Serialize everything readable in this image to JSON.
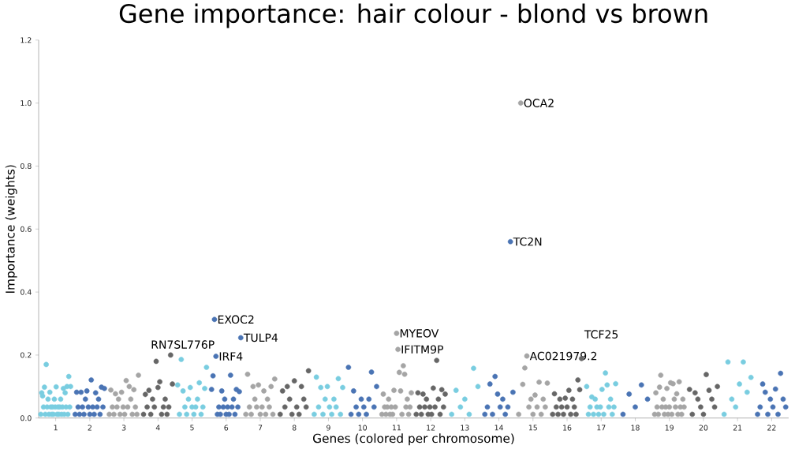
{
  "chart_data": {
    "type": "scatter",
    "title": "Gene importance: hair colour - blond vs brown",
    "xlabel": "Genes (colored per chromosome)",
    "ylabel": "Importance (weights)",
    "categories": [
      "1",
      "2",
      "3",
      "4",
      "5",
      "6",
      "7",
      "8",
      "9",
      "10",
      "11",
      "12",
      "13",
      "14",
      "15",
      "16",
      "17",
      "18",
      "19",
      "20",
      "21",
      "22"
    ],
    "ylim": [
      0,
      1.2
    ],
    "marker": "circle",
    "yticks": [
      {
        "value": 0,
        "label": "0.0"
      },
      {
        "value": 0.2,
        "label": "0.2"
      },
      {
        "value": 0.4,
        "label": "0.4"
      },
      {
        "value": 0.6,
        "label": "0.6"
      },
      {
        "value": 0.8,
        "label": "0.8"
      },
      {
        "value": 1.0,
        "label": "1.0"
      },
      {
        "value": 1.2,
        "label": "1.2"
      }
    ],
    "series": [
      {
        "color": "#79cde0",
        "x": [
          "1",
          "1",
          "1",
          "1",
          "1",
          "1",
          "1",
          "1",
          "1",
          "1",
          "1",
          "1",
          "1",
          "1",
          "1",
          "1",
          "1",
          "1",
          "1",
          "1",
          "1",
          "1",
          "1",
          "1",
          "1",
          "1",
          "1",
          "1",
          "1",
          "1",
          "1",
          "1",
          "1",
          "1",
          "5",
          "5",
          "5",
          "5",
          "5",
          "5",
          "5",
          "5",
          "5",
          "5",
          "5",
          "5",
          "5",
          "5",
          "5",
          "5",
          "5",
          "9",
          "9",
          "9",
          "9",
          "9",
          "9",
          "9",
          "9",
          "9",
          "9",
          "9",
          "9",
          "9",
          "9",
          "13",
          "13",
          "13",
          "13",
          "13",
          "13",
          "13",
          "17",
          "17",
          "17",
          "17",
          "17",
          "17",
          "17",
          "17",
          "17",
          "17",
          "17",
          "17",
          "17",
          "17",
          "17",
          "17",
          "17",
          "17",
          "21",
          "21",
          "21",
          "21",
          "21",
          "21",
          "21",
          "21"
        ],
        "values": [
          0.012,
          0.08,
          0.07,
          0.035,
          0.098,
          0.012,
          0.17,
          0.035,
          0.06,
          0.012,
          0.082,
          0.035,
          0.012,
          0.035,
          0.012,
          0.06,
          0.035,
          0.099,
          0.012,
          0.035,
          0.012,
          0.035,
          0.06,
          0.012,
          0.035,
          0.094,
          0.012,
          0.08,
          0.035,
          0.1,
          0.012,
          0.132,
          0.035,
          0.1,
          0.105,
          0.012,
          0.186,
          0.086,
          0.035,
          0.012,
          0.06,
          0.097,
          0.035,
          0.012,
          0.035,
          0.06,
          0.112,
          0.012,
          0.035,
          0.094,
          0.161,
          0.012,
          0.13,
          0.035,
          0.097,
          0.012,
          0.06,
          0.1,
          0.035,
          0.012,
          0.06,
          0.035,
          0.125,
          0.012,
          0.097,
          0.012,
          0.088,
          0.035,
          0.06,
          0.012,
          0.158,
          0.1,
          0.1,
          0.012,
          0.035,
          0.067,
          0.012,
          0.06,
          0.035,
          0.012,
          0.035,
          0.091,
          0.012,
          0.143,
          0.105,
          0.035,
          0.06,
          0.012,
          0.035,
          0.109,
          0.012,
          0.178,
          0.06,
          0.035,
          0.108,
          0.178,
          0.082,
          0.129
        ]
      },
      {
        "color": "#4a74b4",
        "x": [
          "2",
          "2",
          "2",
          "2",
          "2",
          "2",
          "2",
          "2",
          "2",
          "2",
          "2",
          "2",
          "2",
          "2",
          "2",
          "2",
          "2",
          "2",
          "2",
          "2",
          "2",
          "6",
          "6",
          "6",
          "6",
          "6",
          "6",
          "6",
          "6",
          "6",
          "6",
          "6",
          "6",
          "6",
          "6",
          "6",
          "6",
          "6",
          "6",
          "6",
          "6",
          "6",
          "10",
          "10",
          "10",
          "10",
          "10",
          "10",
          "10",
          "10",
          "10",
          "10",
          "10",
          "10",
          "14",
          "14",
          "14",
          "14",
          "14",
          "14",
          "14",
          "14",
          "14",
          "14",
          "14",
          "14",
          "18",
          "18",
          "18",
          "18",
          "18",
          "22",
          "22",
          "22",
          "22",
          "22",
          "22",
          "22",
          "22",
          "22",
          "22",
          "22",
          "22"
        ],
        "values": [
          0.012,
          0.082,
          0.035,
          0.012,
          0.082,
          0.035,
          0.012,
          0.06,
          0.086,
          0.035,
          0.012,
          0.121,
          0.035,
          0.012,
          0.08,
          0.035,
          0.06,
          0.012,
          0.098,
          0.035,
          0.094,
          0.091,
          0.134,
          0.313,
          0.196,
          0.012,
          0.035,
          0.012,
          0.086,
          0.035,
          0.06,
          0.012,
          0.035,
          0.012,
          0.136,
          0.035,
          0.06,
          0.012,
          0.091,
          0.035,
          0.084,
          0.255,
          0.161,
          0.012,
          0.086,
          0.035,
          0.012,
          0.06,
          0.035,
          0.012,
          0.06,
          0.146,
          0.035,
          0.1,
          0.012,
          0.035,
          0.108,
          0.012,
          0.132,
          0.076,
          0.035,
          0.06,
          0.012,
          0.035,
          0.56,
          0.082,
          0.012,
          0.076,
          0.035,
          0.105,
          0.06,
          0.012,
          0.035,
          0.108,
          0.082,
          0.012,
          0.06,
          0.035,
          0.092,
          0.012,
          0.142,
          0.06,
          0.035
        ]
      },
      {
        "color": "#a5a5a5",
        "x": [
          "3",
          "3",
          "3",
          "3",
          "3",
          "3",
          "3",
          "3",
          "3",
          "3",
          "3",
          "3",
          "3",
          "3",
          "3",
          "3",
          "3",
          "3",
          "3",
          "3",
          "7",
          "7",
          "7",
          "7",
          "7",
          "7",
          "7",
          "7",
          "7",
          "7",
          "7",
          "7",
          "7",
          "7",
          "7",
          "7",
          "7",
          "11",
          "11",
          "11",
          "11",
          "11",
          "11",
          "11",
          "11",
          "11",
          "11",
          "11",
          "11",
          "11",
          "11",
          "11",
          "11",
          "11",
          "11",
          "11",
          "11",
          "11",
          "11",
          "11",
          "15",
          "15",
          "15",
          "15",
          "15",
          "15",
          "15",
          "15",
          "15",
          "15",
          "15",
          "15",
          "15",
          "15",
          "15",
          "19",
          "19",
          "19",
          "19",
          "19",
          "19",
          "19",
          "19",
          "19",
          "19",
          "19",
          "19",
          "19",
          "19",
          "19",
          "19",
          "19",
          "19",
          "19",
          "19",
          "19",
          "19",
          "19",
          "19",
          "19"
        ],
        "values": [
          0.012,
          0.089,
          0.035,
          0.012,
          0.077,
          0.035,
          0.06,
          0.012,
          0.082,
          0.035,
          0.012,
          0.119,
          0.035,
          0.1,
          0.06,
          0.012,
          0.09,
          0.035,
          0.012,
          0.136,
          0.012,
          0.139,
          0.035,
          0.012,
          0.1,
          0.06,
          0.035,
          0.105,
          0.012,
          0.035,
          0.086,
          0.012,
          0.06,
          0.035,
          0.1,
          0.012,
          0.124,
          0.012,
          0.076,
          0.035,
          0.012,
          0.035,
          0.06,
          0.012,
          0.035,
          0.012,
          0.088,
          0.035,
          0.269,
          0.218,
          0.145,
          0.086,
          0.012,
          0.166,
          0.139,
          0.035,
          0.06,
          0.012,
          0.035,
          0.08,
          0.012,
          1.0,
          0.107,
          0.159,
          0.197,
          0.035,
          0.06,
          0.012,
          0.073,
          0.035,
          0.114,
          0.012,
          0.06,
          0.035,
          0.111,
          0.012,
          0.08,
          0.035,
          0.012,
          0.098,
          0.136,
          0.035,
          0.06,
          0.012,
          0.035,
          0.094,
          0.012,
          0.035,
          0.112,
          0.012,
          0.109,
          0.06,
          0.035,
          0.077,
          0.012,
          0.115,
          0.035,
          0.012,
          0.06,
          0.035
        ]
      },
      {
        "color": "#666666",
        "x": [
          "4",
          "4",
          "4",
          "4",
          "4",
          "4",
          "4",
          "4",
          "4",
          "4",
          "4",
          "4",
          "4",
          "4",
          "4",
          "4",
          "4",
          "8",
          "8",
          "8",
          "8",
          "8",
          "8",
          "8",
          "8",
          "8",
          "8",
          "8",
          "8",
          "8",
          "12",
          "12",
          "12",
          "12",
          "12",
          "12",
          "12",
          "12",
          "12",
          "12",
          "12",
          "12",
          "12",
          "12",
          "12",
          "12",
          "12",
          "12",
          "16",
          "16",
          "16",
          "16",
          "16",
          "16",
          "16",
          "16",
          "16",
          "16",
          "16",
          "16",
          "16",
          "16",
          "16",
          "16",
          "16",
          "20",
          "20",
          "20",
          "20",
          "20",
          "20",
          "20",
          "20",
          "20",
          "20",
          "20"
        ],
        "values": [
          0.012,
          0.075,
          0.035,
          0.088,
          0.012,
          0.06,
          0.035,
          0.18,
          0.097,
          0.115,
          0.012,
          0.035,
          0.06,
          0.012,
          0.035,
          0.2,
          0.108,
          0.012,
          0.086,
          0.035,
          0.1,
          0.06,
          0.012,
          0.118,
          0.035,
          0.012,
          0.1,
          0.06,
          0.035,
          0.15,
          0.012,
          0.08,
          0.035,
          0.012,
          0.076,
          0.035,
          0.06,
          0.012,
          0.035,
          0.012,
          0.095,
          0.035,
          0.183,
          0.06,
          0.012,
          0.09,
          0.035,
          0.076,
          0.012,
          0.077,
          0.035,
          0.012,
          0.06,
          0.035,
          0.012,
          0.063,
          0.035,
          0.088,
          0.012,
          0.06,
          0.035,
          0.012,
          0.121,
          0.09,
          0.189,
          0.091,
          0.012,
          0.08,
          0.06,
          0.035,
          0.012,
          0.138,
          0.088,
          0.06,
          0.035,
          0.1
        ]
      }
    ],
    "annotations": [
      "OCA2",
      "TC2N",
      "EXOC2",
      "TULP4",
      "RN7SL776P",
      "IRF4",
      "MYEOV",
      "IFITM9P",
      "AC021979.2",
      "TCF25"
    ]
  }
}
